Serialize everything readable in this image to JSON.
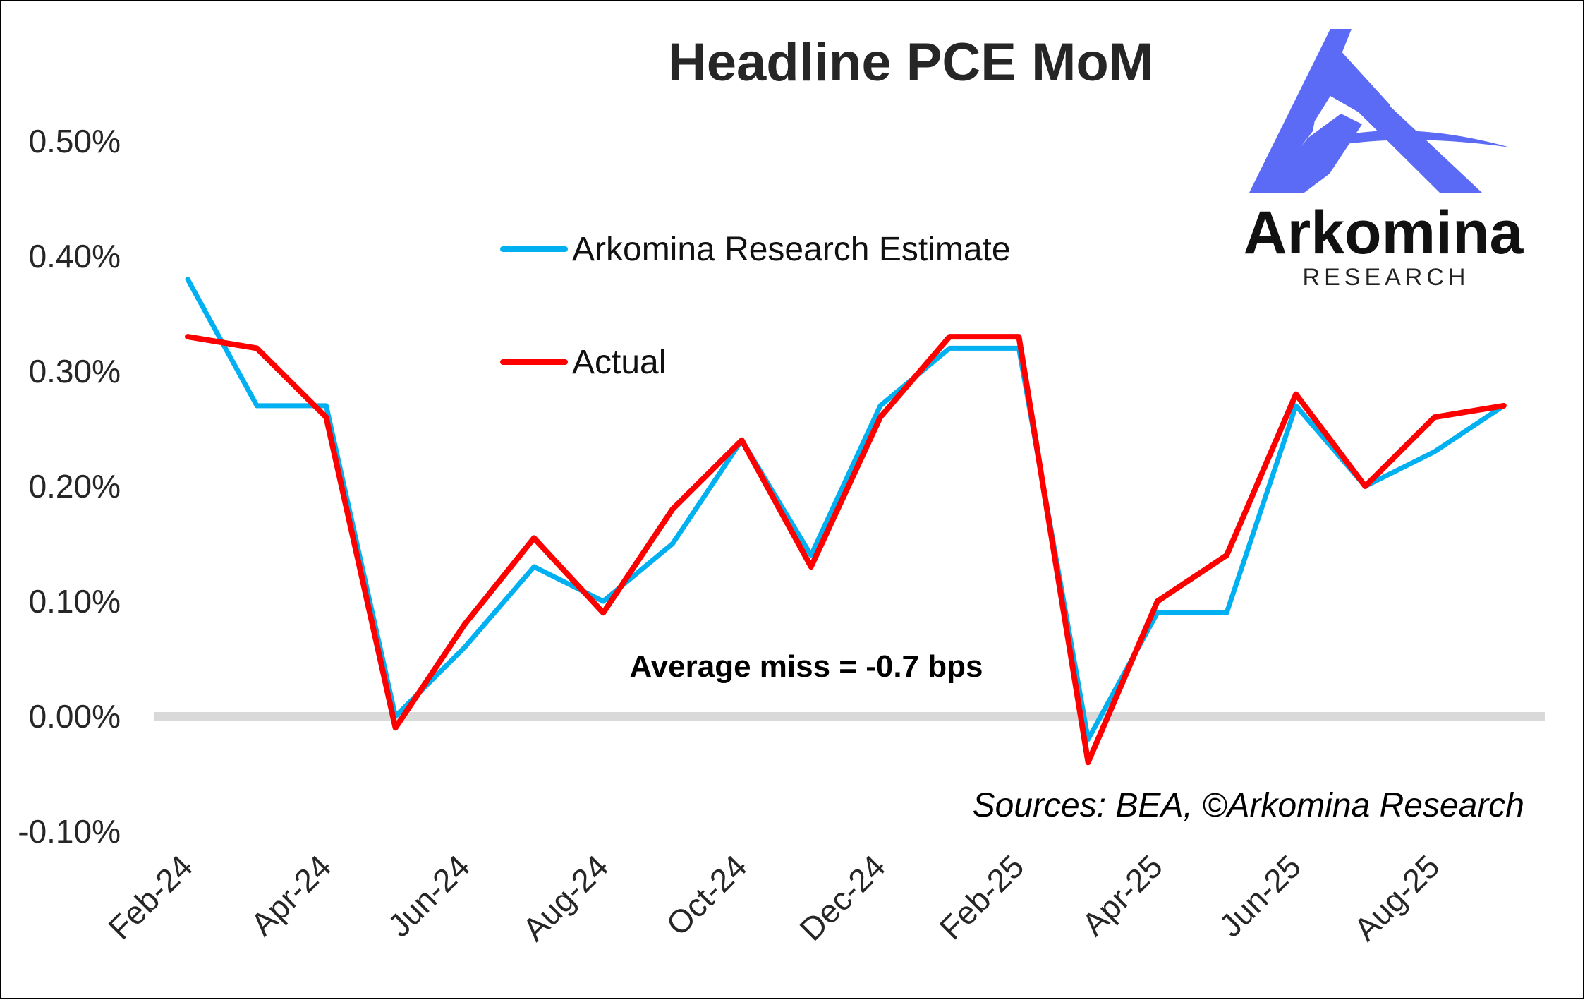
{
  "chart_data": {
    "type": "line",
    "title": "Headline PCE MoM",
    "xlabel": "",
    "ylabel": "",
    "x": [
      "Feb-24",
      "Mar-24",
      "Apr-24",
      "May-24",
      "Jun-24",
      "Jul-24",
      "Aug-24",
      "Sep-24",
      "Oct-24",
      "Nov-24",
      "Dec-24",
      "Jan-25",
      "Feb-25",
      "Mar-25",
      "Apr-25",
      "May-25",
      "Jun-25",
      "Jul-25",
      "Aug-25",
      "Sep-25"
    ],
    "x_tick_labels": [
      "Feb-24",
      "Apr-24",
      "Jun-24",
      "Aug-24",
      "Oct-24",
      "Dec-24",
      "Feb-25",
      "Apr-25",
      "Jun-25",
      "Aug-25"
    ],
    "y_tick_labels": [
      "0.50%",
      "0.40%",
      "0.30%",
      "0.20%",
      "0.10%",
      "0.00%",
      "-0.10%"
    ],
    "y_ticks": [
      0.5,
      0.4,
      0.3,
      0.2,
      0.1,
      0.0,
      -0.1
    ],
    "ylim": [
      -0.1,
      0.5
    ],
    "grid": false,
    "legend_position": "top-center",
    "series": [
      {
        "name": "Arkomina Research Estimate",
        "color": "#00B0F0",
        "values": [
          0.38,
          0.27,
          0.27,
          0.0,
          0.06,
          0.13,
          0.1,
          0.15,
          0.24,
          0.14,
          0.27,
          0.32,
          0.32,
          -0.02,
          0.09,
          0.09,
          0.27,
          0.2,
          0.23,
          0.27
        ]
      },
      {
        "name": "Actual",
        "color": "#FF0000",
        "values": [
          0.33,
          0.32,
          0.26,
          -0.01,
          0.08,
          0.155,
          0.09,
          0.18,
          0.24,
          0.13,
          0.26,
          0.33,
          0.33,
          -0.04,
          0.1,
          0.14,
          0.28,
          0.2,
          0.26,
          0.27
        ]
      }
    ],
    "annotations": [
      "Average miss = -0.7 bps"
    ],
    "source": "Sources: BEA, ©Arkomina Research",
    "zero_line_color": "#D9D9D9"
  },
  "logo": {
    "name": "Arkomina",
    "subtitle": "RESEARCH",
    "color": "#5B6BF5"
  }
}
